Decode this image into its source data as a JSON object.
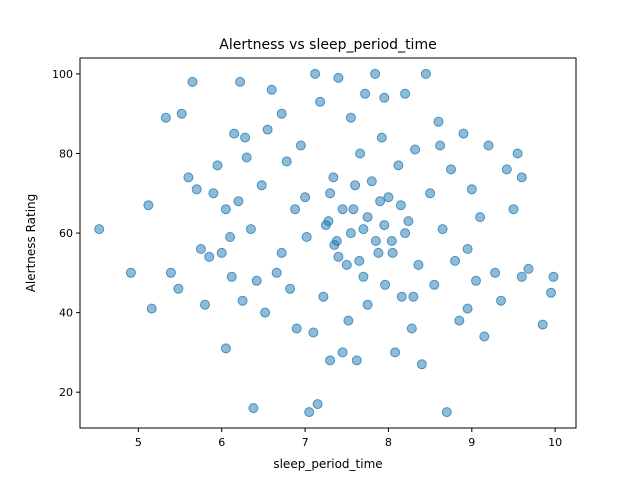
{
  "chart_data": {
    "type": "scatter",
    "title": "Alertness vs sleep_period_time",
    "xlabel": "sleep_period_time",
    "ylabel": "Alertness Rating",
    "xlim": [
      4.3,
      10.25
    ],
    "ylim": [
      11,
      104
    ],
    "x_ticks": [
      5,
      6,
      7,
      8,
      9,
      10
    ],
    "y_ticks": [
      20,
      40,
      60,
      80,
      100
    ],
    "grid": false,
    "legend": "none",
    "marker_color": "#1f77b4",
    "marker_alpha": 0.5,
    "points": [
      [
        4.53,
        61
      ],
      [
        4.91,
        50
      ],
      [
        5.12,
        67
      ],
      [
        5.16,
        41
      ],
      [
        5.33,
        89
      ],
      [
        5.39,
        50
      ],
      [
        5.48,
        46
      ],
      [
        5.52,
        90
      ],
      [
        5.6,
        74
      ],
      [
        5.65,
        98
      ],
      [
        5.7,
        71
      ],
      [
        5.75,
        56
      ],
      [
        5.8,
        42
      ],
      [
        5.85,
        54
      ],
      [
        5.9,
        70
      ],
      [
        5.95,
        77
      ],
      [
        6.0,
        55
      ],
      [
        6.05,
        66
      ],
      [
        6.1,
        59
      ],
      [
        6.12,
        49
      ],
      [
        6.15,
        85
      ],
      [
        6.2,
        68
      ],
      [
        6.22,
        98
      ],
      [
        6.25,
        43
      ],
      [
        6.3,
        79
      ],
      [
        6.35,
        61
      ],
      [
        6.38,
        16
      ],
      [
        6.42,
        48
      ],
      [
        6.48,
        72
      ],
      [
        6.52,
        40
      ],
      [
        6.55,
        86
      ],
      [
        6.6,
        96
      ],
      [
        6.66,
        50
      ],
      [
        6.72,
        55
      ],
      [
        6.78,
        78
      ],
      [
        6.82,
        46
      ],
      [
        6.88,
        66
      ],
      [
        6.9,
        36
      ],
      [
        6.95,
        82
      ],
      [
        7.0,
        69
      ],
      [
        7.02,
        59
      ],
      [
        7.05,
        15
      ],
      [
        7.1,
        35
      ],
      [
        7.12,
        100
      ],
      [
        7.15,
        17
      ],
      [
        7.18,
        93
      ],
      [
        7.22,
        44
      ],
      [
        7.28,
        63
      ],
      [
        7.3,
        28
      ],
      [
        7.34,
        74
      ],
      [
        7.38,
        58
      ],
      [
        7.4,
        99
      ],
      [
        7.45,
        30
      ],
      [
        7.5,
        52
      ],
      [
        7.55,
        89
      ],
      [
        7.58,
        66
      ],
      [
        7.62,
        28
      ],
      [
        7.66,
        80
      ],
      [
        7.7,
        61
      ],
      [
        7.72,
        95
      ],
      [
        7.75,
        42
      ],
      [
        7.8,
        73
      ],
      [
        7.84,
        100
      ],
      [
        7.88,
        55
      ],
      [
        7.92,
        84
      ],
      [
        7.96,
        47
      ],
      [
        8.0,
        69
      ],
      [
        8.04,
        58
      ],
      [
        8.08,
        30
      ],
      [
        8.12,
        77
      ],
      [
        8.16,
        44
      ],
      [
        8.2,
        95
      ],
      [
        8.24,
        63
      ],
      [
        8.28,
        36
      ],
      [
        8.32,
        81
      ],
      [
        8.36,
        52
      ],
      [
        8.4,
        27
      ],
      [
        8.45,
        100
      ],
      [
        8.5,
        70
      ],
      [
        8.55,
        47
      ],
      [
        8.6,
        88
      ],
      [
        8.65,
        61
      ],
      [
        8.7,
        15
      ],
      [
        8.75,
        76
      ],
      [
        8.8,
        53
      ],
      [
        8.85,
        38
      ],
      [
        8.9,
        85
      ],
      [
        8.95,
        56
      ],
      [
        9.0,
        71
      ],
      [
        9.05,
        48
      ],
      [
        9.1,
        64
      ],
      [
        9.15,
        34
      ],
      [
        9.2,
        82
      ],
      [
        9.28,
        50
      ],
      [
        9.35,
        43
      ],
      [
        9.42,
        76
      ],
      [
        9.5,
        66
      ],
      [
        9.55,
        80
      ],
      [
        9.6,
        49
      ],
      [
        9.68,
        51
      ],
      [
        9.85,
        37
      ],
      [
        9.95,
        45
      ],
      [
        9.98,
        49
      ],
      [
        9.6,
        74
      ],
      [
        6.05,
        31
      ],
      [
        6.28,
        84
      ],
      [
        7.52,
        38
      ],
      [
        8.3,
        44
      ],
      [
        8.95,
        41
      ],
      [
        7.95,
        94
      ],
      [
        6.72,
        90
      ],
      [
        8.62,
        82
      ],
      [
        7.25,
        62
      ],
      [
        7.35,
        57
      ],
      [
        7.45,
        66
      ],
      [
        7.55,
        60
      ],
      [
        7.65,
        53
      ],
      [
        7.75,
        64
      ],
      [
        7.85,
        58
      ],
      [
        7.95,
        62
      ],
      [
        8.05,
        55
      ],
      [
        8.15,
        67
      ],
      [
        7.3,
        70
      ],
      [
        7.6,
        72
      ],
      [
        7.9,
        68
      ],
      [
        8.2,
        60
      ],
      [
        7.4,
        54
      ],
      [
        7.7,
        49
      ]
    ]
  }
}
